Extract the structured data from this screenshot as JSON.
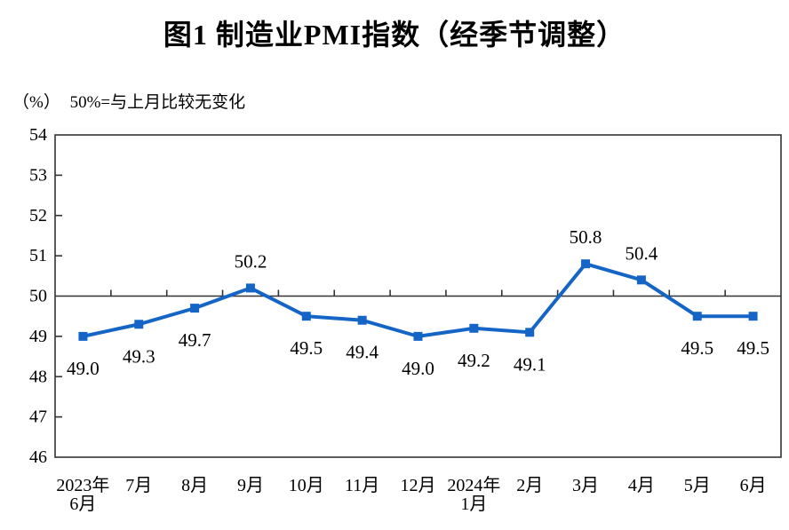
{
  "title": "图1  制造业PMI指数（经季节调整）",
  "axis_unit": "（%）",
  "reference_note": "50%=与上月比较无变化",
  "colors": {
    "line": "#1565C6",
    "axis": "#333333",
    "text": "#000000"
  },
  "chart_data": {
    "type": "line",
    "title": "图1  制造业PMI指数（经季节调整）",
    "categories": [
      [
        "2023年",
        "6月"
      ],
      [
        "7月"
      ],
      [
        "8月"
      ],
      [
        "9月"
      ],
      [
        "10月"
      ],
      [
        "11月"
      ],
      [
        "12月"
      ],
      [
        "2024年",
        "1月"
      ],
      [
        "2月"
      ],
      [
        "3月"
      ],
      [
        "4月"
      ],
      [
        "5月"
      ],
      [
        "6月"
      ]
    ],
    "series": [
      {
        "name": "制造业PMI指数",
        "values": [
          49.0,
          49.3,
          49.7,
          50.2,
          49.5,
          49.4,
          49.0,
          49.2,
          49.1,
          50.8,
          50.4,
          49.5,
          49.5
        ]
      }
    ],
    "data_labels": [
      "49.0",
      "49.3",
      "49.7",
      "50.2",
      "49.5",
      "49.4",
      "49.0",
      "49.2",
      "49.1",
      "50.8",
      "50.4",
      "49.5",
      "49.5"
    ],
    "label_side": [
      "below",
      "below",
      "below",
      "above",
      "below",
      "below",
      "below",
      "below",
      "below",
      "above",
      "above",
      "below",
      "below"
    ],
    "ylim": [
      46,
      54
    ],
    "y_ticks": [
      46,
      47,
      48,
      49,
      50,
      51,
      52,
      53,
      54
    ],
    "reference_line": 50,
    "marker": "square",
    "grid": false,
    "legend": "none",
    "xlabel": "",
    "ylabel": "（%）"
  }
}
